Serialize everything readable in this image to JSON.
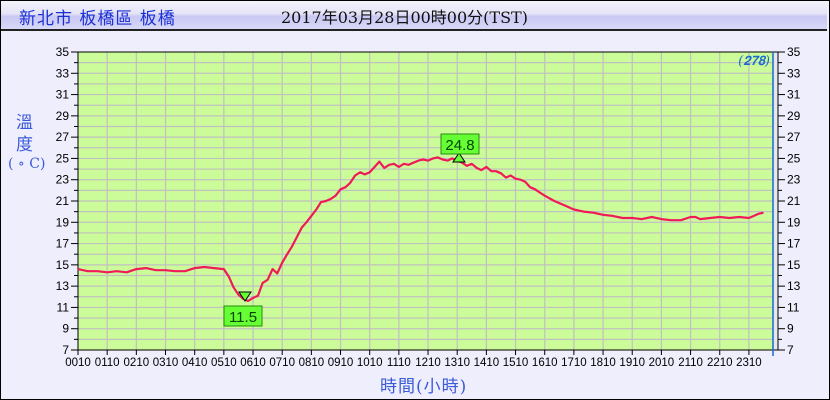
{
  "header": {
    "station": "新北市 板橋區 板橋",
    "datetime": "2017年03月28日00時00分(TST)"
  },
  "axes": {
    "y_label_line1": "溫",
    "y_label_line2": "度",
    "y_unit": "( ∘ C)",
    "x_label": "時間(小時)",
    "corner_note": "(𝟐𝟕𝟖)"
  },
  "colors": {
    "plot_bg": "#ccfc99",
    "grid": "#c0c0c0",
    "line": "#f0195a",
    "now_line": "#1a6ad0",
    "label_bg": "#66ff33",
    "label_text": "#004400"
  },
  "annotations": {
    "min_label": "11.5",
    "max_label": "24.8"
  },
  "chart_data": {
    "type": "line",
    "title": "新北市 板橋區 板橋 2017年03月28日00時00分(TST)",
    "xlabel": "時間(小時)",
    "ylabel": "溫度 (°C)",
    "ylim": [
      7,
      35
    ],
    "yticks": [
      7,
      9,
      11,
      13,
      15,
      17,
      19,
      21,
      23,
      25,
      27,
      29,
      31,
      33,
      35
    ],
    "xticks": [
      "0010",
      "0110",
      "0210",
      "0310",
      "0410",
      "0510",
      "0610",
      "0710",
      "0810",
      "0910",
      "1010",
      "1110",
      "1210",
      "1310",
      "1410",
      "1510",
      "1610",
      "1710",
      "1810",
      "1910",
      "2010",
      "2110",
      "2210",
      "2310"
    ],
    "grid": true,
    "legend": null,
    "min": {
      "value": 11.5,
      "time": "0550"
    },
    "max": {
      "value": 24.8,
      "time": "1310"
    },
    "series": [
      {
        "name": "溫度",
        "x_hours": [
          0,
          0.33,
          0.67,
          1,
          1.33,
          1.67,
          2,
          2.33,
          2.67,
          3,
          3.33,
          3.67,
          4,
          4.33,
          4.67,
          5,
          5.17,
          5.33,
          5.5,
          5.67,
          5.83,
          6,
          6.17,
          6.33,
          6.5,
          6.67,
          6.83,
          7,
          7.17,
          7.33,
          7.5,
          7.67,
          7.83,
          8,
          8.17,
          8.33,
          8.5,
          8.67,
          8.83,
          9,
          9.17,
          9.33,
          9.5,
          9.67,
          9.83,
          10,
          10.17,
          10.33,
          10.5,
          10.67,
          10.83,
          11,
          11.17,
          11.33,
          11.5,
          11.67,
          11.83,
          12,
          12.17,
          12.33,
          12.5,
          12.67,
          12.83,
          13,
          13.17,
          13.33,
          13.5,
          13.67,
          13.83,
          14,
          14.17,
          14.33,
          14.5,
          14.67,
          14.83,
          15,
          15.17,
          15.33,
          15.5,
          15.67,
          15.83,
          16,
          16.33,
          16.67,
          17,
          17.33,
          17.67,
          18,
          18.33,
          18.67,
          19,
          19.33,
          19.67,
          20,
          20.33,
          20.67,
          21,
          21.17,
          21.33,
          21.67,
          22,
          22.33,
          22.67,
          23,
          23.17,
          23.33,
          23.5,
          23.67
        ],
        "values": [
          14.6,
          14.4,
          14.4,
          14.3,
          14.4,
          14.3,
          14.6,
          14.7,
          14.5,
          14.5,
          14.4,
          14.4,
          14.7,
          14.8,
          14.7,
          14.6,
          13.9,
          12.9,
          12.2,
          11.8,
          11.6,
          11.9,
          12.1,
          13.3,
          13.6,
          14.6,
          14.2,
          15.2,
          16.0,
          16.7,
          17.6,
          18.5,
          19.0,
          19.6,
          20.2,
          20.9,
          21.0,
          21.2,
          21.5,
          22.1,
          22.3,
          22.7,
          23.4,
          23.7,
          23.5,
          23.7,
          24.2,
          24.7,
          24.1,
          24.4,
          24.5,
          24.2,
          24.5,
          24.4,
          24.6,
          24.8,
          24.9,
          24.8,
          25.0,
          25.1,
          24.9,
          24.8,
          25.0,
          24.8,
          24.6,
          24.3,
          24.5,
          24.1,
          23.9,
          24.2,
          23.8,
          23.8,
          23.6,
          23.2,
          23.4,
          23.1,
          23.0,
          22.8,
          22.3,
          22.1,
          21.8,
          21.5,
          21.0,
          20.6,
          20.2,
          20.0,
          19.9,
          19.7,
          19.6,
          19.4,
          19.4,
          19.3,
          19.5,
          19.3,
          19.2,
          19.2,
          19.5,
          19.5,
          19.3,
          19.4,
          19.5,
          19.4,
          19.5,
          19.4,
          19.6,
          19.8,
          19.9
        ]
      }
    ]
  }
}
